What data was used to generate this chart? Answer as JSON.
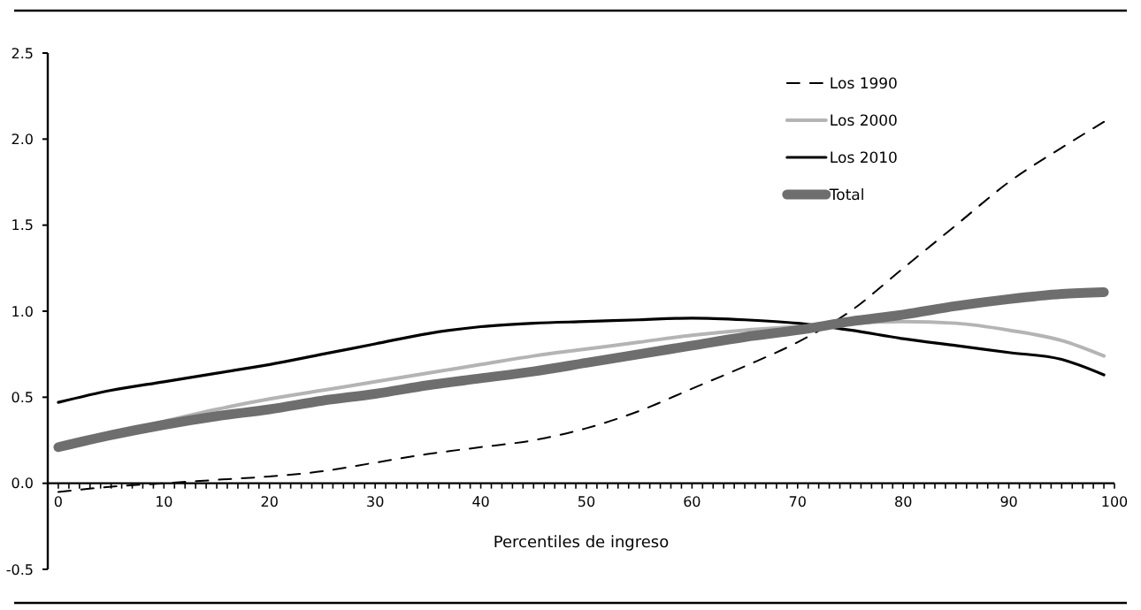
{
  "chart_data": {
    "type": "line",
    "xlabel": "Percentiles de ingreso",
    "legend": "top right",
    "grid": false,
    "marker": "none",
    "xlim": [
      -1,
      100
    ],
    "ylim": [
      -0.5,
      2.5
    ],
    "yticks": [
      {
        "value": -0.5,
        "label": "-0.5"
      },
      {
        "value": 0,
        "label": "0.0"
      },
      {
        "value": 0.5,
        "label": "0.5"
      },
      {
        "value": 1,
        "label": "1.0"
      },
      {
        "value": 1.5,
        "label": "1.5"
      },
      {
        "value": 2,
        "label": "2.0"
      },
      {
        "value": 2.5,
        "label": "2.5"
      }
    ],
    "xticks": [
      0,
      {
        "value": 1,
        "label": null
      },
      {
        "value": 2,
        "label": null
      },
      {
        "value": 3,
        "label": null
      },
      {
        "value": 4,
        "label": null
      },
      {
        "value": 5,
        "label": null
      },
      {
        "value": 6,
        "label": null
      },
      {
        "value": 7,
        "label": null
      },
      {
        "value": 8,
        "label": null
      },
      {
        "value": 9,
        "label": null
      },
      10,
      {
        "value": 11,
        "label": null
      },
      {
        "value": 12,
        "label": null
      },
      {
        "value": 13,
        "label": null
      },
      {
        "value": 14,
        "label": null
      },
      {
        "value": 15,
        "label": null
      },
      {
        "value": 16,
        "label": null
      },
      {
        "value": 17,
        "label": null
      },
      {
        "value": 18,
        "label": null
      },
      {
        "value": 19,
        "label": null
      },
      20,
      {
        "value": 21,
        "label": null
      },
      {
        "value": 22,
        "label": null
      },
      {
        "value": 23,
        "label": null
      },
      {
        "value": 24,
        "label": null
      },
      {
        "value": 25,
        "label": null
      },
      {
        "value": 26,
        "label": null
      },
      {
        "value": 27,
        "label": null
      },
      {
        "value": 28,
        "label": null
      },
      {
        "value": 29,
        "label": null
      },
      30,
      {
        "value": 31,
        "label": null
      },
      {
        "value": 32,
        "label": null
      },
      {
        "value": 33,
        "label": null
      },
      {
        "value": 34,
        "label": null
      },
      {
        "value": 35,
        "label": null
      },
      {
        "value": 36,
        "label": null
      },
      {
        "value": 37,
        "label": null
      },
      {
        "value": 38,
        "label": null
      },
      {
        "value": 39,
        "label": null
      },
      40,
      {
        "value": 41,
        "label": null
      },
      {
        "value": 42,
        "label": null
      },
      {
        "value": 43,
        "label": null
      },
      {
        "value": 44,
        "label": null
      },
      {
        "value": 45,
        "label": null
      },
      {
        "value": 46,
        "label": null
      },
      {
        "value": 47,
        "label": null
      },
      {
        "value": 48,
        "label": null
      },
      {
        "value": 49,
        "label": null
      },
      50,
      {
        "value": 51,
        "label": null
      },
      {
        "value": 52,
        "label": null
      },
      {
        "value": 53,
        "label": null
      },
      {
        "value": 54,
        "label": null
      },
      {
        "value": 55,
        "label": null
      },
      {
        "value": 56,
        "label": null
      },
      {
        "value": 57,
        "label": null
      },
      {
        "value": 58,
        "label": null
      },
      {
        "value": 59,
        "label": null
      },
      60,
      {
        "value": 61,
        "label": null
      },
      {
        "value": 62,
        "label": null
      },
      {
        "value": 63,
        "label": null
      },
      {
        "value": 64,
        "label": null
      },
      {
        "value": 65,
        "label": null
      },
      {
        "value": 66,
        "label": null
      },
      {
        "value": 67,
        "label": null
      },
      {
        "value": 68,
        "label": null
      },
      {
        "value": 69,
        "label": null
      },
      70,
      {
        "value": 71,
        "label": null
      },
      {
        "value": 72,
        "label": null
      },
      {
        "value": 73,
        "label": null
      },
      {
        "value": 74,
        "label": null
      },
      {
        "value": 75,
        "label": null
      },
      {
        "value": 76,
        "label": null
      },
      {
        "value": 77,
        "label": null
      },
      {
        "value": 78,
        "label": null
      },
      {
        "value": 79,
        "label": null
      },
      80,
      {
        "value": 81,
        "label": null
      },
      {
        "value": 82,
        "label": null
      },
      {
        "value": 83,
        "label": null
      },
      {
        "value": 84,
        "label": null
      },
      {
        "value": 85,
        "label": null
      },
      {
        "value": 86,
        "label": null
      },
      {
        "value": 87,
        "label": null
      },
      {
        "value": 88,
        "label": null
      },
      {
        "value": 89,
        "label": null
      },
      90,
      {
        "value": 91,
        "label": null
      },
      {
        "value": 92,
        "label": null
      },
      {
        "value": 93,
        "label": null
      },
      {
        "value": 94,
        "label": null
      },
      {
        "value": 95,
        "label": null
      },
      {
        "value": 96,
        "label": null
      },
      {
        "value": 97,
        "label": null
      },
      {
        "value": 98,
        "label": null
      },
      {
        "value": 99,
        "label": null
      },
      100
    ],
    "x": [
      0,
      5,
      10,
      15,
      20,
      25,
      30,
      35,
      40,
      45,
      50,
      55,
      60,
      65,
      70,
      75,
      80,
      85,
      90,
      95,
      99
    ],
    "series": [
      {
        "name": "Los 1990",
        "color": "#000000",
        "line_style": "dashed",
        "values": [
          -0.05,
          -0.02,
          0.0,
          0.02,
          0.04,
          0.07,
          0.12,
          0.17,
          0.21,
          0.25,
          0.32,
          0.42,
          0.55,
          0.68,
          0.82,
          1.0,
          1.25,
          1.5,
          1.75,
          1.95,
          2.1
        ]
      },
      {
        "name": "Los 2000",
        "color": "#b4b4b4",
        "line_style": "solid",
        "values": [
          0.22,
          0.29,
          0.36,
          0.43,
          0.49,
          0.54,
          0.59,
          0.64,
          0.69,
          0.74,
          0.78,
          0.82,
          0.86,
          0.89,
          0.91,
          0.93,
          0.94,
          0.93,
          0.89,
          0.83,
          0.74
        ]
      },
      {
        "name": "Los 2010",
        "color": "#000000",
        "line_style": "solid",
        "values": [
          0.47,
          0.54,
          0.59,
          0.64,
          0.69,
          0.75,
          0.81,
          0.87,
          0.91,
          0.93,
          0.94,
          0.95,
          0.96,
          0.95,
          0.93,
          0.89,
          0.84,
          0.8,
          0.76,
          0.72,
          0.63
        ]
      },
      {
        "name": "Total",
        "color": "#6e6e6e",
        "line_style": "solid",
        "values": [
          0.21,
          0.28,
          0.34,
          0.39,
          0.43,
          0.48,
          0.52,
          0.57,
          0.61,
          0.65,
          0.7,
          0.75,
          0.8,
          0.85,
          0.89,
          0.94,
          0.98,
          1.03,
          1.07,
          1.1,
          1.11
        ]
      }
    ]
  }
}
